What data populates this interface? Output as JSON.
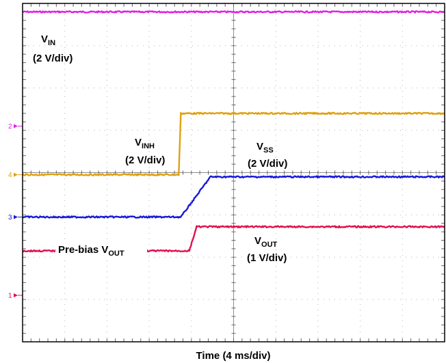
{
  "chart_data": {
    "type": "line",
    "title": "",
    "xlabel": "Time (4 ms/div)",
    "ylabel": "",
    "grid": true,
    "xlim": [
      0,
      40
    ],
    "x_divisions": 10,
    "y_divisions": 8,
    "x_units": "ms",
    "series": [
      {
        "key": "vin",
        "label_main": "V",
        "label_sub": "IN",
        "label_scale": "(2 V/div)",
        "color": "#e020e0",
        "x": [
          0,
          40
        ],
        "y_div": [
          7.8,
          7.8
        ]
      },
      {
        "key": "vinh",
        "label_main": "V",
        "label_sub": "INH",
        "label_scale": "(2 V/div)",
        "color": "#e0a010",
        "x": [
          0,
          14.8,
          15.0,
          40
        ],
        "y_div": [
          3.95,
          3.95,
          5.4,
          5.4
        ]
      },
      {
        "key": "vss",
        "label_main": "V",
        "label_sub": "SS",
        "label_scale": "(2 V/div)",
        "color": "#1818d8",
        "x": [
          0,
          15.0,
          17.8,
          40
        ],
        "y_div": [
          2.95,
          2.95,
          3.9,
          3.9
        ]
      },
      {
        "key": "vout",
        "label_main": "V",
        "label_sub": "OUT",
        "label_scale": "(1 V/div)",
        "color": "#e01050",
        "x": [
          0,
          15.8,
          16.5,
          40
        ],
        "y_div": [
          2.15,
          2.15,
          2.72,
          2.72
        ]
      }
    ],
    "annotations": [
      {
        "key": "prebias",
        "text_main": "Pre-bias V",
        "text_sub": "OUT"
      }
    ],
    "channel_markers": [
      {
        "label": "2",
        "y_div": 5.1,
        "color": "#e020e0"
      },
      {
        "label": "4",
        "y_div": 3.95,
        "color": "#e0a010"
      },
      {
        "label": "3",
        "y_div": 2.95,
        "color": "#1818d8"
      },
      {
        "label": "1",
        "y_div": 1.1,
        "color": "#e01050"
      }
    ]
  }
}
